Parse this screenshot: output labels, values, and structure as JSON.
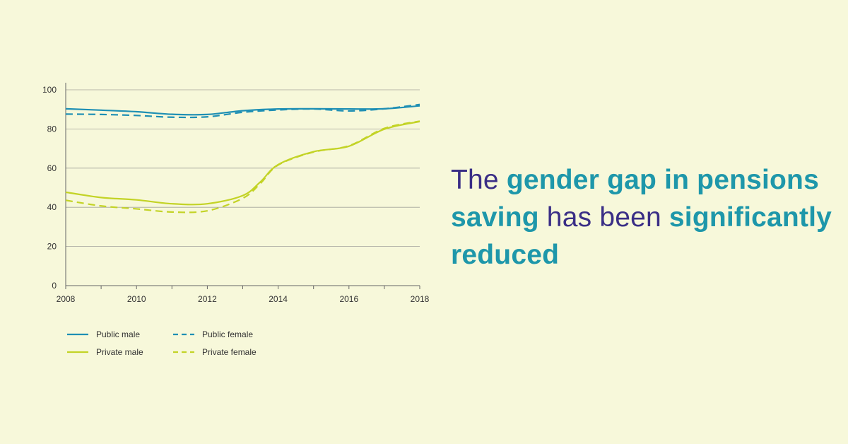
{
  "colors": {
    "background": "#f7f8da",
    "public": "#1e8fb4",
    "private": "#c3d326",
    "grid": "#a3a39b",
    "axis": "#666666",
    "text": "#333333",
    "headline_plain": "#3a2e86",
    "headline_accent": "#1e97aa"
  },
  "headline": {
    "segments": [
      {
        "text": "The ",
        "accent": false
      },
      {
        "text": "gender gap in pensions saving",
        "accent": true
      },
      {
        "text": " has been ",
        "accent": false
      },
      {
        "text": "significantly reduced",
        "accent": true
      }
    ]
  },
  "chart_data": {
    "type": "line",
    "title": "",
    "xlabel": "",
    "ylabel": "",
    "xlim": [
      2008,
      2018
    ],
    "ylim": [
      0,
      100
    ],
    "x_ticks": [
      2008,
      2010,
      2012,
      2014,
      2016,
      2018
    ],
    "y_ticks": [
      0,
      20,
      40,
      60,
      80,
      100
    ],
    "grid": true,
    "legend_position": "bottom",
    "series": [
      {
        "name": "Public male",
        "color": "public",
        "style": "solid",
        "points": [
          [
            2008,
            90.3
          ],
          [
            2009,
            89.6
          ],
          [
            2010,
            88.8
          ],
          [
            2011,
            87.5
          ],
          [
            2012,
            87.4
          ],
          [
            2013,
            89.3
          ],
          [
            2014,
            90.2
          ],
          [
            2015,
            90.3
          ],
          [
            2016,
            90.2
          ],
          [
            2017,
            90.3
          ],
          [
            2018,
            91.8
          ]
        ]
      },
      {
        "name": "Public female",
        "color": "public",
        "style": "dashed",
        "points": [
          [
            2008,
            87.6
          ],
          [
            2009,
            87.4
          ],
          [
            2010,
            86.9
          ],
          [
            2011,
            86.0
          ],
          [
            2012,
            86.2
          ],
          [
            2013,
            88.5
          ],
          [
            2014,
            89.7
          ],
          [
            2015,
            90.2
          ],
          [
            2016,
            89.2
          ],
          [
            2017,
            90.3
          ],
          [
            2018,
            92.5
          ]
        ]
      },
      {
        "name": "Private male",
        "color": "private",
        "style": "solid",
        "points": [
          [
            2008,
            47.7
          ],
          [
            2009,
            45.0
          ],
          [
            2010,
            43.8
          ],
          [
            2011,
            41.8
          ],
          [
            2012,
            41.8
          ],
          [
            2013,
            46.0
          ],
          [
            2013.5,
            53.0
          ],
          [
            2014,
            61.8
          ],
          [
            2015,
            68.4
          ],
          [
            2016,
            71.2
          ],
          [
            2017,
            79.9
          ],
          [
            2018,
            83.8
          ]
        ]
      },
      {
        "name": "Private female",
        "color": "private",
        "style": "dashed",
        "points": [
          [
            2008,
            43.6
          ],
          [
            2009,
            40.7
          ],
          [
            2010,
            39.2
          ],
          [
            2011,
            37.6
          ],
          [
            2012,
            38.2
          ],
          [
            2013,
            44.6
          ],
          [
            2013.5,
            52.2
          ],
          [
            2014,
            61.6
          ],
          [
            2015,
            68.2
          ],
          [
            2016,
            71.4
          ],
          [
            2017,
            80.3
          ],
          [
            2018,
            84.0
          ]
        ]
      }
    ]
  }
}
